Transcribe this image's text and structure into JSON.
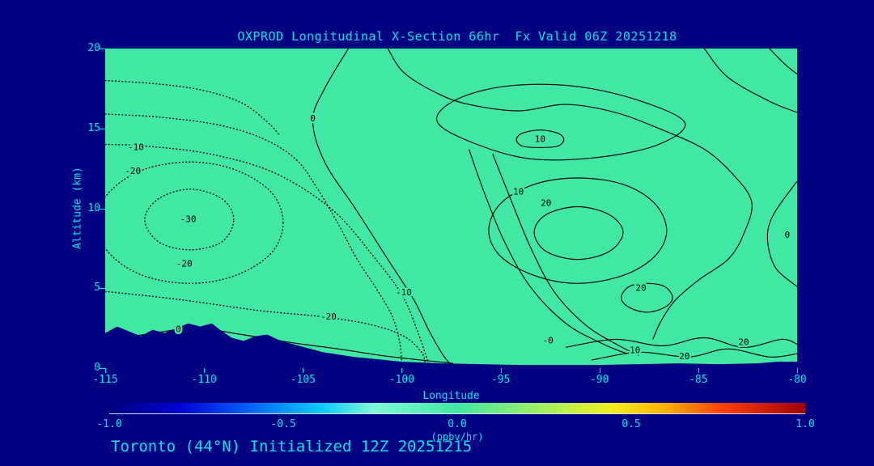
{
  "title": "OXPROD Longitudinal X-Section 66hr  Fx Valid 06Z 20251218",
  "footer": "Toronto (44°N) Initialized 12Z 20251215",
  "colors": {
    "background": "#000080",
    "text": "#00E6E6",
    "plot_fill": "#40E8A4",
    "contour": "#000000",
    "terrain": "#000080"
  },
  "chart_data": {
    "type": "contour",
    "title": "OXPROD Longitudinal X-Section 66hr  Fx Valid 06Z 20251218",
    "subtitle": "Toronto (44°N) Initialized 12Z 20251215",
    "xlabel": "Longitude",
    "ylabel": "Altitude (km)",
    "xlim": [
      -115,
      -80
    ],
    "ylim": [
      0,
      20
    ],
    "x_ticks": [
      -115,
      -110,
      -105,
      -100,
      -95,
      -90,
      -85,
      -80
    ],
    "y_ticks": [
      0,
      5,
      10,
      15,
      20
    ],
    "grid": false,
    "contour_levels": [
      -30,
      -20,
      -10,
      0,
      10,
      20
    ],
    "negative_style": "dotted",
    "positive_style": "solid",
    "contours": [
      {
        "level": -10,
        "style": "dotted",
        "closed": false,
        "pts": [
          [
            -115,
            14.0
          ],
          [
            -113,
            13.9
          ],
          [
            -109.7,
            13.4
          ],
          [
            -106.4,
            12.2
          ],
          [
            -103.5,
            9.9
          ],
          [
            -101.5,
            7.1
          ],
          [
            -100,
            4.6
          ],
          [
            -99.2,
            2.3
          ],
          [
            -98.6,
            0.1
          ]
        ]
      },
      {
        "level": -10,
        "style": "dotted",
        "closed": false,
        "pts": [
          [
            -115,
            18.0
          ],
          [
            -112.5,
            17.8
          ],
          [
            -110.1,
            17.4
          ],
          [
            -108.1,
            16.6
          ],
          [
            -106.8,
            15.4
          ],
          [
            -106.2,
            14.6
          ]
        ]
      },
      {
        "level": -10,
        "style": "dotted",
        "closed": false,
        "pts": [
          [
            -115,
            15.9
          ],
          [
            -112.2,
            15.7
          ],
          [
            -109.2,
            15.2
          ],
          [
            -106.9,
            14.3
          ],
          [
            -105.3,
            13.0
          ],
          [
            -104.3,
            11.3
          ],
          [
            -103.2,
            9.0
          ],
          [
            -102.3,
            6.9
          ],
          [
            -101.3,
            5.0
          ],
          [
            -100.5,
            3.3
          ],
          [
            -100.1,
            1.6
          ],
          [
            -100.0,
            0.2
          ]
        ]
      },
      {
        "level": -20,
        "style": "dotted",
        "closed": true,
        "pts": [
          [
            -106.0,
            9.1
          ],
          [
            -106.6,
            11.0
          ],
          [
            -108.4,
            12.4
          ],
          [
            -110.7,
            12.9
          ],
          [
            -113.1,
            12.4
          ],
          [
            -114.8,
            11.0
          ],
          [
            -115.5,
            9.1
          ],
          [
            -114.8,
            7.2
          ],
          [
            -113.1,
            5.8
          ],
          [
            -110.7,
            5.3
          ],
          [
            -108.4,
            5.8
          ],
          [
            -106.6,
            7.2
          ]
        ]
      },
      {
        "level": -30,
        "style": "dotted",
        "closed": true,
        "pts": [
          [
            -108.5,
            9.3
          ],
          [
            -109.1,
            10.6
          ],
          [
            -110.7,
            11.2
          ],
          [
            -112.3,
            10.6
          ],
          [
            -113.0,
            9.3
          ],
          [
            -112.3,
            7.9
          ],
          [
            -110.7,
            7.4
          ],
          [
            -109.1,
            7.9
          ]
        ]
      },
      {
        "level": -20,
        "style": "dotted",
        "closed": false,
        "pts": [
          [
            -115,
            4.8
          ],
          [
            -111.3,
            4.3
          ],
          [
            -107.2,
            3.6
          ],
          [
            -103.9,
            3.2
          ],
          [
            -101.5,
            2.7
          ],
          [
            -99.9,
            2.0
          ],
          [
            -99,
            1.0
          ],
          [
            -98.8,
            0.2
          ]
        ]
      },
      {
        "level": 0,
        "style": "solid",
        "closed": false,
        "pts": [
          [
            -115,
            1.8
          ],
          [
            -113,
            2.1
          ],
          [
            -110.5,
            2.5
          ],
          [
            -108.1,
            2.1
          ],
          [
            -105.6,
            1.6
          ],
          [
            -103.2,
            1.2
          ],
          [
            -101.1,
            0.8
          ],
          [
            -99,
            0.5
          ],
          [
            -97.4,
            0.3
          ]
        ]
      },
      {
        "level": 0,
        "style": "solid",
        "closed": false,
        "pts": [
          [
            -102.7,
            20
          ],
          [
            -103.9,
            17.5
          ],
          [
            -104.5,
            15.5
          ],
          [
            -103.9,
            12.9
          ],
          [
            -102.3,
            9.9
          ],
          [
            -100.7,
            6.8
          ],
          [
            -99.4,
            4.3
          ],
          [
            -98.6,
            2.3
          ],
          [
            -97.9,
            0.8
          ],
          [
            -97.5,
            0.2
          ]
        ]
      },
      {
        "level": 0,
        "style": "solid",
        "closed": true,
        "pts": [
          [
            -97.4,
            16.7
          ],
          [
            -95,
            17.6
          ],
          [
            -91.7,
            17.7
          ],
          [
            -88.4,
            16.9
          ],
          [
            -85.7,
            15.4
          ],
          [
            -87,
            14.0
          ],
          [
            -90,
            13.2
          ],
          [
            -93.5,
            13.1
          ],
          [
            -96.4,
            14.1
          ],
          [
            -98.2,
            15.4
          ]
        ]
      },
      {
        "level": 10,
        "style": "solid",
        "closed": true,
        "pts": [
          [
            -91.8,
            14.3
          ],
          [
            -92.1,
            14.7
          ],
          [
            -93,
            14.9
          ],
          [
            -93.9,
            14.7
          ],
          [
            -94.2,
            14.3
          ],
          [
            -93.9,
            13.9
          ],
          [
            -93,
            13.8
          ],
          [
            -92.1,
            13.9
          ]
        ]
      },
      {
        "level": 10,
        "style": "solid",
        "closed": true,
        "pts": [
          [
            -86.6,
            8.6
          ],
          [
            -87.2,
            10.3
          ],
          [
            -88.8,
            11.5
          ],
          [
            -91.1,
            11.9
          ],
          [
            -93.3,
            11.5
          ],
          [
            -95,
            10.3
          ],
          [
            -95.6,
            8.6
          ],
          [
            -95,
            7.0
          ],
          [
            -93.3,
            5.8
          ],
          [
            -91.1,
            5.3
          ],
          [
            -88.8,
            5.8
          ],
          [
            -87.2,
            7.0
          ]
        ]
      },
      {
        "level": 20,
        "style": "solid",
        "closed": true,
        "pts": [
          [
            -88.8,
            8.5
          ],
          [
            -89.5,
            9.6
          ],
          [
            -91.1,
            10.1
          ],
          [
            -92.7,
            9.6
          ],
          [
            -93.3,
            8.5
          ],
          [
            -92.7,
            7.3
          ],
          [
            -91.1,
            6.8
          ],
          [
            -89.5,
            7.3
          ]
        ]
      },
      {
        "level": 0,
        "style": "solid",
        "closed": false,
        "pts": [
          [
            -100.7,
            20
          ],
          [
            -99.9,
            18.5
          ],
          [
            -98.2,
            17.2
          ],
          [
            -96.6,
            16.5
          ],
          [
            -94.1,
            16.1
          ],
          [
            -91.7,
            16.5
          ],
          [
            -89.2,
            16.0
          ],
          [
            -86.8,
            14.9
          ],
          [
            -84.7,
            13.7
          ],
          [
            -83.3,
            12.2
          ],
          [
            -82.3,
            10.4
          ],
          [
            -82.7,
            8.4
          ],
          [
            -83.5,
            6.8
          ],
          [
            -85,
            5.5
          ],
          [
            -86.2,
            4.2
          ],
          [
            -86.9,
            2.9
          ],
          [
            -87.3,
            1.8
          ]
        ]
      },
      {
        "level": 10,
        "style": "solid",
        "closed": false,
        "pts": [
          [
            -96.6,
            13.7
          ],
          [
            -95.8,
            10.9
          ],
          [
            -94.8,
            7.9
          ],
          [
            -93.5,
            5.1
          ],
          [
            -91.7,
            2.8
          ],
          [
            -89.8,
            1.5
          ],
          [
            -88.6,
            0.9
          ]
        ]
      },
      {
        "level": 10,
        "style": "solid",
        "closed": false,
        "pts": [
          [
            -95.4,
            13.4
          ],
          [
            -94.5,
            10.6
          ],
          [
            -93.5,
            7.6
          ],
          [
            -92.3,
            4.8
          ],
          [
            -90.7,
            2.7
          ],
          [
            -89,
            1.4
          ],
          [
            -88,
            0.8
          ]
        ]
      },
      {
        "level": 0,
        "style": "solid",
        "closed": false,
        "pts": [
          [
            -80,
            11.7
          ],
          [
            -81.2,
            9.6
          ],
          [
            -81.5,
            8.1
          ],
          [
            -81.1,
            6.3
          ],
          [
            -80,
            5.1
          ]
        ]
      },
      {
        "level": 0,
        "style": "solid",
        "closed": false,
        "pts": [
          [
            -84.7,
            20
          ],
          [
            -83.5,
            18.2
          ],
          [
            -81.4,
            16.7
          ],
          [
            -80,
            16.0
          ]
        ]
      },
      {
        "level": 0,
        "style": "solid",
        "closed": false,
        "pts": [
          [
            -81.4,
            20
          ],
          [
            -80.6,
            19.0
          ],
          [
            -80,
            18.4
          ]
        ]
      },
      {
        "level": 20,
        "style": "solid",
        "closed": true,
        "pts": [
          [
            -86.3,
            4.4
          ],
          [
            -86.7,
            5.1
          ],
          [
            -87.6,
            5.3
          ],
          [
            -88.5,
            5.1
          ],
          [
            -88.9,
            4.4
          ],
          [
            -88.5,
            3.8
          ],
          [
            -87.6,
            3.5
          ],
          [
            -86.7,
            3.8
          ]
        ]
      },
      {
        "level": 10,
        "style": "solid",
        "closed": false,
        "pts": [
          [
            -91.7,
            1.3
          ],
          [
            -89.2,
            1.8
          ],
          [
            -86.8,
            1.4
          ],
          [
            -84.7,
            1.9
          ],
          [
            -82.7,
            1.3
          ],
          [
            -80.8,
            1.8
          ],
          [
            -80,
            1.5
          ]
        ]
      },
      {
        "level": 20,
        "style": "solid",
        "closed": false,
        "pts": [
          [
            -90.4,
            0.5
          ],
          [
            -88,
            1.0
          ],
          [
            -85.5,
            0.7
          ],
          [
            -83.5,
            1.2
          ],
          [
            -81.4,
            0.7
          ],
          [
            -80,
            0.9
          ]
        ]
      }
    ],
    "contour_labels": [
      {
        "text": "-10",
        "lon": -113.45,
        "alt": 13.8
      },
      {
        "text": "-20",
        "lon": -113.6,
        "alt": 12.3
      },
      {
        "text": "-30",
        "lon": -110.8,
        "alt": 9.3
      },
      {
        "text": "-20",
        "lon": -111.0,
        "alt": 6.5
      },
      {
        "text": "-20",
        "lon": -103.7,
        "alt": 3.2
      },
      {
        "text": "-10",
        "lon": -99.9,
        "alt": 4.7
      },
      {
        "text": "0",
        "lon": -111.3,
        "alt": 2.4
      },
      {
        "text": "0",
        "lon": -104.5,
        "alt": 15.6
      },
      {
        "text": "10",
        "lon": -93.0,
        "alt": 14.3
      },
      {
        "text": "10",
        "lon": -94.1,
        "alt": 11.0
      },
      {
        "text": "20",
        "lon": -92.7,
        "alt": 10.3
      },
      {
        "text": "0",
        "lon": -80.5,
        "alt": 8.3
      },
      {
        "text": "20",
        "lon": -87.9,
        "alt": 5.0
      },
      {
        "text": "-0",
        "lon": -92.6,
        "alt": 1.7
      },
      {
        "text": "10",
        "lon": -88.2,
        "alt": 1.1
      },
      {
        "text": "20",
        "lon": -85.7,
        "alt": 0.7
      },
      {
        "text": "20",
        "lon": -82.7,
        "alt": 1.6
      }
    ],
    "terrain_km": [
      [
        -115,
        2.2
      ],
      [
        -114.4,
        2.6
      ],
      [
        -113.8,
        2.3
      ],
      [
        -113.2,
        2.0
      ],
      [
        -112.6,
        2.4
      ],
      [
        -112.0,
        2.2
      ],
      [
        -111.4,
        2.5
      ],
      [
        -110.8,
        2.8
      ],
      [
        -110.2,
        2.6
      ],
      [
        -109.6,
        2.8
      ],
      [
        -109.2,
        2.4
      ],
      [
        -108.6,
        1.9
      ],
      [
        -108.0,
        1.7
      ],
      [
        -107.4,
        2.0
      ],
      [
        -106.8,
        2.1
      ],
      [
        -106.3,
        1.8
      ],
      [
        -105.8,
        1.6
      ],
      [
        -105.2,
        1.4
      ],
      [
        -104.6,
        1.2
      ],
      [
        -104.0,
        1.0
      ],
      [
        -103.2,
        0.85
      ],
      [
        -102.4,
        0.7
      ],
      [
        -101.6,
        0.6
      ],
      [
        -100.8,
        0.5
      ],
      [
        -100,
        0.4
      ],
      [
        -99,
        0.35
      ],
      [
        -98,
        0.3
      ],
      [
        -96,
        0.25
      ],
      [
        -94,
        0.2
      ],
      [
        -92,
        0.2
      ],
      [
        -90,
        0.2
      ],
      [
        -88,
        0.25
      ],
      [
        -86,
        0.3
      ],
      [
        -84,
        0.25
      ],
      [
        -82,
        0.3
      ],
      [
        -81,
        0.4
      ],
      [
        -80,
        0.4
      ]
    ],
    "colorbar": {
      "label": "(ppbv/hr)",
      "min": -1.0,
      "max": 1.0,
      "ticks": [
        "-1.0",
        "-0.5",
        "0.0",
        "0.5",
        "1.0"
      ],
      "gradient": [
        {
          "pos": 0.0,
          "color": "#000080"
        },
        {
          "pos": 0.1,
          "color": "#0000D0"
        },
        {
          "pos": 0.2,
          "color": "#0060FF"
        },
        {
          "pos": 0.3,
          "color": "#00C8FF"
        },
        {
          "pos": 0.38,
          "color": "#80F8D8"
        },
        {
          "pos": 0.5,
          "color": "#40E8A4"
        },
        {
          "pos": 0.62,
          "color": "#A0F060"
        },
        {
          "pos": 0.72,
          "color": "#F0F020"
        },
        {
          "pos": 0.8,
          "color": "#FFB000"
        },
        {
          "pos": 0.88,
          "color": "#FF4000"
        },
        {
          "pos": 1.0,
          "color": "#A00000"
        }
      ]
    }
  }
}
